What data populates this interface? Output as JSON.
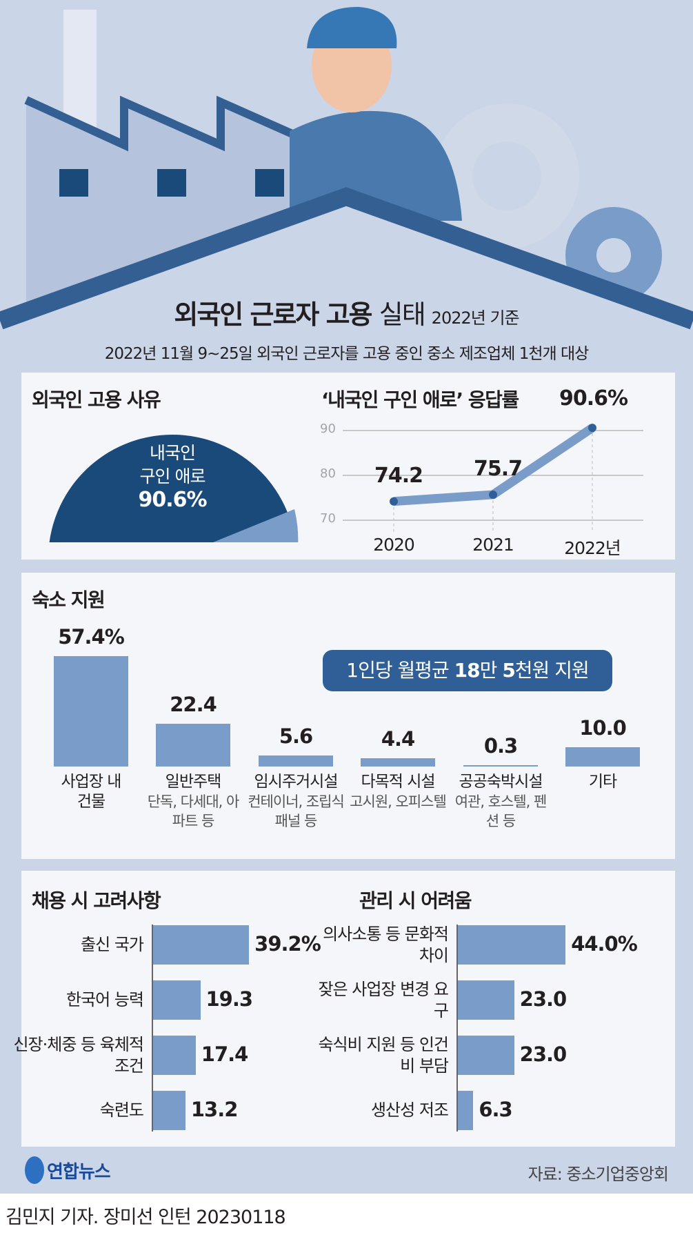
{
  "title": {
    "bold": "외국인 근로자 고용",
    "light": "실태",
    "basis": "2022년 기준"
  },
  "subtitle": "2022년 11월 9~25일 외국인 근로자를 고용 중인 중소 제조업체 1천개 대상",
  "colors": {
    "navy": "#1a4a7a",
    "bar": "#7a9cc8",
    "badge": "#2f5f96",
    "background": "#cad5e7",
    "panel": "#f4f6fa"
  },
  "reason": {
    "title": "외국인 고용 사유",
    "label_line1": "내국인",
    "label_line2": "구인 애로",
    "value": "90.6%"
  },
  "trend": {
    "title": "‘내국인 구인 애로’ 응답률"
  },
  "housing": {
    "title": "숙소 지원",
    "badge_prefix": "1인당 월평균 ",
    "badge_b1": "18",
    "badge_m": "만 ",
    "badge_b2": "5",
    "badge_suffix": "천원 지원",
    "cats": [
      {
        "label": "사업장 내",
        "sub": "건물",
        "value_label": "57.4%"
      },
      {
        "label": "일반주택",
        "sub": "단독, 다세대, 아파트 등",
        "value_label": "22.4"
      },
      {
        "label": "임시주거시설",
        "sub": "컨테이너, 조립식 패널 등",
        "value_label": "5.6"
      },
      {
        "label": "다목적 시설",
        "sub": "고시원, 오피스텔",
        "value_label": "4.4"
      },
      {
        "label": "공공숙박시설",
        "sub": "여관, 호스텔, 펜션 등",
        "value_label": "0.3"
      },
      {
        "label": "기타",
        "sub": "",
        "value_label": "10.0"
      }
    ]
  },
  "hiring": {
    "title": "채용 시 고려사항",
    "items": [
      {
        "label": "출신 국가",
        "value_label": "39.2%"
      },
      {
        "label": "한국어 능력",
        "value_label": "19.3"
      },
      {
        "label": "신장·체중 등 육체적 조건",
        "value_label": "17.4"
      },
      {
        "label": "숙련도",
        "value_label": "13.2"
      }
    ]
  },
  "management": {
    "title": "관리 시 어려움",
    "items": [
      {
        "label": "의사소통 등 문화적 차이",
        "value_label": "44.0%"
      },
      {
        "label": "잦은 사업장 변경 요구",
        "value_label": "23.0"
      },
      {
        "label": "숙식비 지원 등 인건비 부담",
        "value_label": "23.0"
      },
      {
        "label": "생산성 저조",
        "value_label": "6.3"
      }
    ]
  },
  "footer": {
    "logo": "연합뉴스",
    "source": "자료: 중소기업중앙회",
    "credit": "김민지 기자. 장미선 인턴  20230118"
  },
  "chart_data": [
    {
      "type": "pie",
      "title": "외국인 고용 사유",
      "slices": [
        {
          "label": "내국인 구인 애로",
          "value": 90.6
        },
        {
          "label": "",
          "value": 9.4
        }
      ]
    },
    {
      "type": "line",
      "title": "‘내국인 구인 애로’ 응답률",
      "categories": [
        "2020",
        "2021",
        "2022년"
      ],
      "values": [
        74.2,
        75.7,
        90.6
      ],
      "value_labels": [
        "74.2",
        "75.7",
        "90.6%"
      ],
      "yticks": [
        "70",
        "80",
        "90"
      ],
      "ylim": [
        70,
        90
      ],
      "grid": true
    },
    {
      "type": "bar",
      "title": "숙소 지원",
      "values": [
        57.4,
        22.4,
        5.6,
        4.4,
        0.3,
        10.0
      ]
    },
    {
      "type": "bar",
      "orientation": "horizontal",
      "title": "채용 시 고려사항",
      "values": [
        39.2,
        19.3,
        17.4,
        13.2
      ]
    },
    {
      "type": "bar",
      "orientation": "horizontal",
      "title": "관리 시 어려움",
      "values": [
        44.0,
        23.0,
        23.0,
        6.3
      ]
    }
  ]
}
